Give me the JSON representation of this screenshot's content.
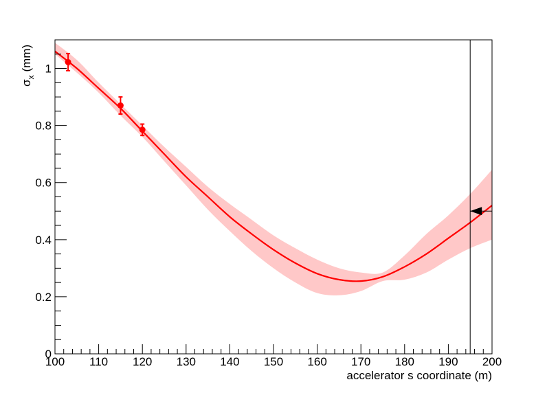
{
  "chart_data": {
    "type": "scatter",
    "xlabel": "accelerator s coordinate (m)",
    "ylabel": "σx (mm)",
    "ylabel_parts": {
      "base": "σ",
      "sub": "x",
      "unit": "(mm)"
    },
    "xlim": [
      100,
      200
    ],
    "ylim": [
      0,
      1.1
    ],
    "x_ticks": [
      100,
      110,
      120,
      130,
      140,
      150,
      160,
      170,
      180,
      190,
      200
    ],
    "x_tick_labels": [
      "100",
      "110",
      "120",
      "130",
      "140",
      "150",
      "160",
      "170",
      "180",
      "190",
      "200"
    ],
    "y_ticks": [
      0,
      0.2,
      0.4,
      0.6,
      0.8,
      1
    ],
    "y_tick_labels": [
      "0",
      "0.2",
      "0.4",
      "0.6",
      "0.8",
      "1"
    ],
    "grid": false,
    "colors": {
      "fit": "#ff0000",
      "band": "#ffc8c8",
      "points": "#ff0000",
      "marker": "#000000"
    },
    "measurements": [
      {
        "x": 103,
        "y": 1.022,
        "err": 0.03
      },
      {
        "x": 115,
        "y": 0.87,
        "err": 0.03
      },
      {
        "x": 120,
        "y": 0.785,
        "err": 0.02
      }
    ],
    "fit_curve": {
      "x": [
        100,
        105,
        110,
        115,
        120,
        125,
        130,
        135,
        140,
        145,
        150,
        155,
        160,
        165,
        170,
        175,
        180,
        185,
        190,
        195,
        200
      ],
      "y": [
        1.06,
        1.0,
        0.93,
        0.86,
        0.78,
        0.7,
        0.62,
        0.55,
        0.48,
        0.42,
        0.365,
        0.318,
        0.281,
        0.26,
        0.255,
        0.27,
        0.305,
        0.35,
        0.405,
        0.46,
        0.52
      ]
    },
    "error_band": {
      "x": [
        100,
        105,
        110,
        115,
        120,
        125,
        130,
        135,
        140,
        145,
        150,
        155,
        160,
        165,
        170,
        175,
        180,
        185,
        190,
        195,
        200
      ],
      "lower": [
        1.05,
        0.985,
        0.915,
        0.835,
        0.76,
        0.675,
        0.59,
        0.505,
        0.43,
        0.36,
        0.3,
        0.25,
        0.213,
        0.205,
        0.22,
        0.255,
        0.26,
        0.285,
        0.33,
        0.37,
        0.4
      ],
      "upper": [
        1.09,
        1.03,
        0.95,
        0.875,
        0.8,
        0.725,
        0.655,
        0.585,
        0.525,
        0.47,
        0.415,
        0.37,
        0.33,
        0.3,
        0.285,
        0.285,
        0.345,
        0.42,
        0.485,
        0.56,
        0.645
      ]
    },
    "vertical_line_x": 195,
    "target_marker": {
      "x": 195,
      "y": 0.5
    }
  }
}
